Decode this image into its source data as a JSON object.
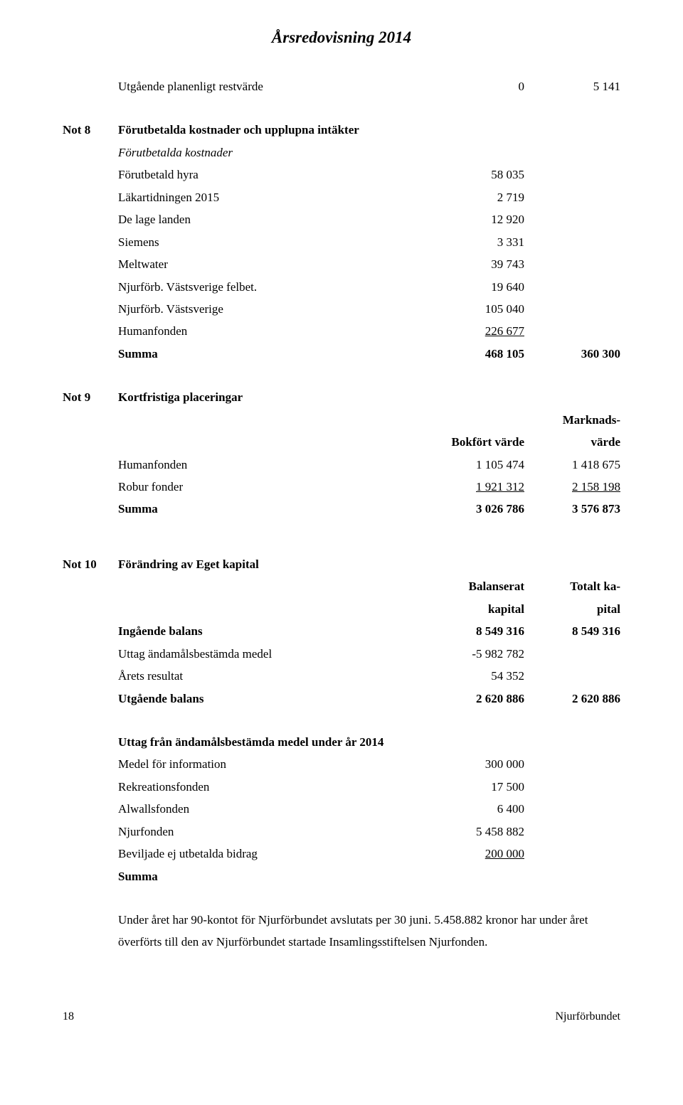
{
  "page_title": "Årsredovisning 2014",
  "residual": {
    "label": "Utgående planenligt restvärde",
    "v1": "0",
    "v2": "5 141"
  },
  "note8": {
    "tag": "Not 8",
    "title": "Förutbetalda kostnader och upplupna intäkter",
    "subtitle": "Förutbetalda kostnader",
    "rows": [
      {
        "label": "Förutbetald hyra",
        "v1": "58 035"
      },
      {
        "label": "Läkartidningen 2015",
        "v1": "2 719"
      },
      {
        "label": "De lage landen",
        "v1": "12 920"
      },
      {
        "label": "Siemens",
        "v1": "3 331"
      },
      {
        "label": "Meltwater",
        "v1": "39 743"
      },
      {
        "label": "Njurförb. Västsverige felbet.",
        "v1": "19 640"
      },
      {
        "label": "Njurförb. Västsverige",
        "v1": "105 040"
      },
      {
        "label": "Humanfonden",
        "v1": "226 677",
        "underline": true
      }
    ],
    "sum": {
      "label": "Summa",
      "v1": "468 105",
      "v2": "360 300"
    }
  },
  "note9": {
    "tag": "Not 9",
    "title": "Kortfristiga placeringar",
    "header2_a": "Marknads-",
    "header1": "Bokfört värde",
    "header2_b": "värde",
    "rows": [
      {
        "label": "Humanfonden",
        "v1": "1 105 474",
        "v2": "1 418 675"
      },
      {
        "label": "Robur fonder",
        "v1": "1 921 312",
        "v2": "2 158 198",
        "underline": true
      }
    ],
    "sum": {
      "label": "Summa",
      "v1": "3 026 786",
      "v2": "3 576 873"
    }
  },
  "note10": {
    "tag": "Not 10",
    "title": "Förändring av Eget kapital",
    "h1a": "Balanserat",
    "h1b": "kapital",
    "h2a": "Totalt ka-",
    "h2b": "pital",
    "rows": [
      {
        "label": "Ingående balans",
        "v1": "8 549 316",
        "v2": "8 549 316",
        "bold": true
      },
      {
        "label": "Uttag ändamålsbestämda medel",
        "v1": "-5 982 782"
      },
      {
        "label": "Årets resultat",
        "v1": "54 352"
      },
      {
        "label": "Utgående balans",
        "v1": "2 620 886",
        "v2": "2 620 886",
        "bold": true
      }
    ]
  },
  "uttag": {
    "title": "Uttag från ändamålsbestämda medel under år 2014",
    "rows": [
      {
        "label": "Medel för information",
        "v1": "300 000"
      },
      {
        "label": "Rekreationsfonden",
        "v1": "17 500"
      },
      {
        "label": "Alwallsfonden",
        "v1": "6 400"
      },
      {
        "label": "Njurfonden",
        "v1": "5 458 882"
      },
      {
        "label": "Beviljade ej utbetalda bidrag",
        "v1": "200 000",
        "underline": true
      }
    ],
    "sum_label": "Summa"
  },
  "closing_paragraph": "Under året har 90-kontot för Njurförbundet avslutats per 30 juni. 5.458.882 kronor har under året överförts till den av Njurförbundet startade Insamlingsstiftelsen Njurfonden.",
  "footer": {
    "page": "18",
    "org": "Njurförbundet"
  }
}
